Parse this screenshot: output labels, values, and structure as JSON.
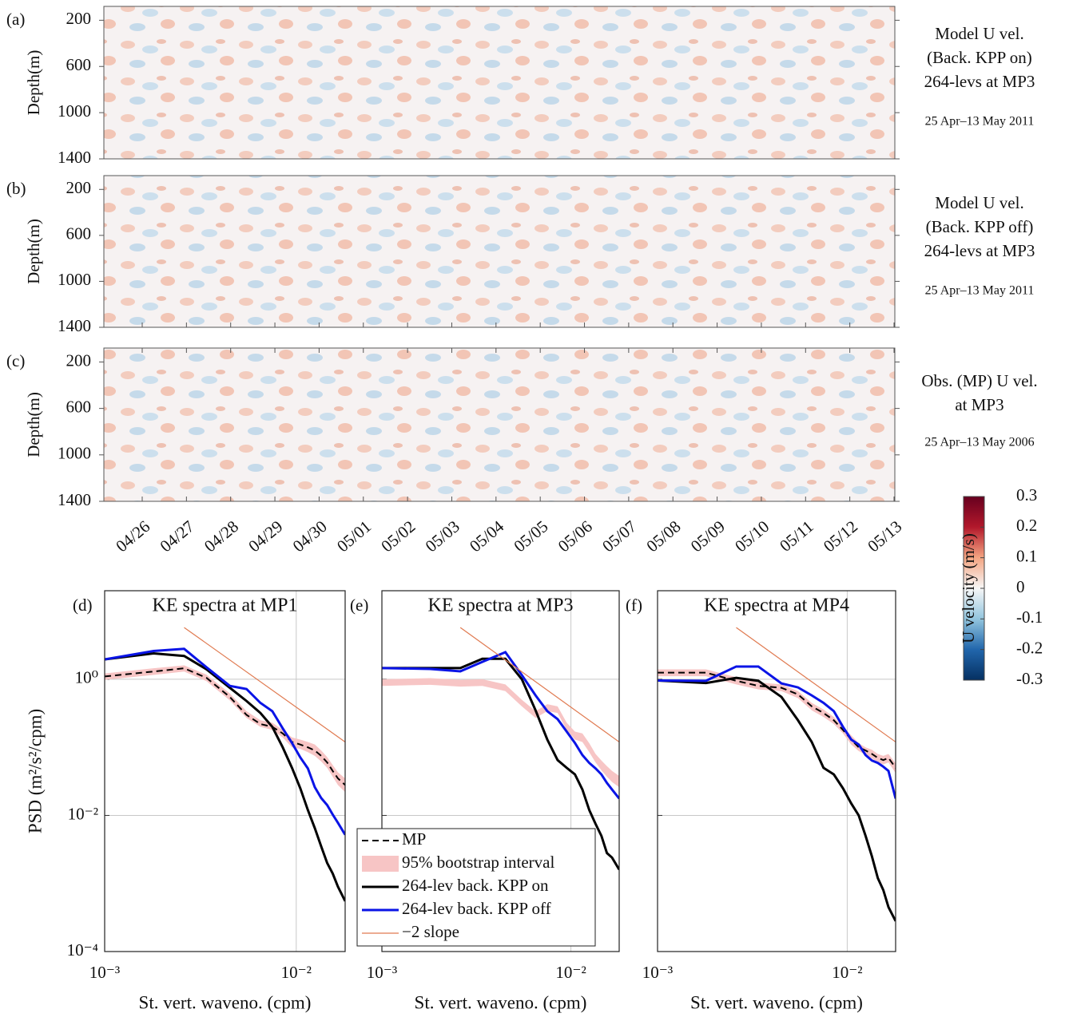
{
  "chart_data": [
    {
      "type": "heatmap",
      "panel_label": "(a)",
      "ylabel": "Depth(m)",
      "ylim": [
        1400,
        80
      ],
      "yticks": [
        200,
        600,
        1000,
        1400
      ],
      "annotation": [
        "Model U vel.",
        "(Back. KPP on)",
        "264-levs at MP3"
      ],
      "date_range": "25 Apr–13 May 2011"
    },
    {
      "type": "heatmap",
      "panel_label": "(b)",
      "ylabel": "Depth(m)",
      "ylim": [
        1400,
        80
      ],
      "yticks": [
        200,
        600,
        1000,
        1400
      ],
      "annotation": [
        "Model U vel.",
        "(Back. KPP off)",
        "264-levs at MP3"
      ],
      "date_range": "25 Apr–13 May 2011"
    },
    {
      "type": "heatmap",
      "panel_label": "(c)",
      "ylabel": "Depth(m)",
      "ylim": [
        1400,
        80
      ],
      "yticks": [
        200,
        600,
        1000,
        1400
      ],
      "annotation": [
        "Obs. (MP) U vel.",
        "at MP3"
      ],
      "date_range": "25 Apr–13 May 2006",
      "categories": [
        "04/26",
        "04/27",
        "04/28",
        "04/29",
        "04/30",
        "05/01",
        "05/02",
        "05/03",
        "05/04",
        "05/05",
        "05/06",
        "05/07",
        "05/08",
        "05/09",
        "05/10",
        "05/11",
        "05/12",
        "05/13"
      ]
    },
    {
      "type": "colorbar",
      "label": "U velocity (m/s)",
      "ylim": [
        -0.3,
        0.3
      ],
      "yticks": [
        0.3,
        0.2,
        0.1,
        0,
        -0.1,
        -0.2,
        -0.3
      ],
      "colormap": [
        "#053061",
        "#2166ac",
        "#92c5de",
        "#f7f7f7",
        "#f4a582",
        "#b2182b",
        "#67001f"
      ]
    },
    {
      "type": "line",
      "panel_label": "(d)",
      "title": "KE spectra at MP1",
      "ylabel": "PSD (m²/s²/cpm)",
      "xlabel": "St. vert. waveno. (cpm)",
      "xscale": "log",
      "yscale": "log",
      "grid": true,
      "xlim": [
        0.001,
        0.018
      ],
      "ylim": [
        0.0001,
        20
      ],
      "xticks": [
        {
          "value": 0.001,
          "label": "10⁻³"
        },
        {
          "value": 0.01,
          "label": "10⁻²"
        }
      ],
      "yticks": [
        {
          "value": 0.0001,
          "label": "10⁻⁴"
        },
        {
          "value": 0.01,
          "label": "10⁻²"
        },
        {
          "value": 1,
          "label": "10⁰"
        }
      ],
      "x": [
        0.001,
        0.0018,
        0.0026,
        0.0034,
        0.0045,
        0.0055,
        0.0065,
        0.0075,
        0.0085,
        0.0095,
        0.0105,
        0.0115,
        0.0125,
        0.0135,
        0.0145,
        0.0155,
        0.0165,
        0.018
      ],
      "series": [
        {
          "color": "#f7c5c5",
          "lower": [
            0.98,
            1.16,
            1.3,
            0.94,
            0.49,
            0.27,
            0.2,
            0.18,
            0.14,
            0.1,
            0.095,
            0.085,
            0.075,
            0.062,
            0.05,
            0.037,
            0.028,
            0.022
          ],
          "upper": [
            1.22,
            1.45,
            1.6,
            1.17,
            0.62,
            0.34,
            0.25,
            0.23,
            0.18,
            0.14,
            0.13,
            0.12,
            0.11,
            0.09,
            0.072,
            0.055,
            0.043,
            0.035
          ]
        },
        {
          "color": "#000000",
          "style": "dashed",
          "values": [
            1.1,
            1.3,
            1.45,
            1.05,
            0.55,
            0.3,
            0.22,
            0.2,
            0.16,
            0.12,
            0.11,
            0.1,
            0.09,
            0.075,
            0.06,
            0.045,
            0.035,
            0.028
          ]
        },
        {
          "color": "#000000",
          "values": [
            1.96,
            2.4,
            2.2,
            1.4,
            0.75,
            0.48,
            0.32,
            0.2,
            0.1,
            0.05,
            0.025,
            0.012,
            0.0065,
            0.0035,
            0.002,
            0.0014,
            0.0009,
            0.00055
          ]
        },
        {
          "color": "#0a14e6",
          "values": [
            1.96,
            2.6,
            2.8,
            1.5,
            0.8,
            0.72,
            0.45,
            0.34,
            0.19,
            0.116,
            0.071,
            0.049,
            0.026,
            0.018,
            0.0142,
            0.0103,
            0.0078,
            0.0052
          ]
        },
        {
          "color": "#e07a50",
          "style": "thin",
          "x": [
            0.0026,
            0.018
          ],
          "values": [
            5.76,
            0.12
          ]
        }
      ]
    },
    {
      "type": "line",
      "panel_label": "(e)",
      "title": "KE spectra at MP3",
      "xlabel": "St. vert. waveno. (cpm)",
      "xscale": "log",
      "yscale": "log",
      "grid": true,
      "xlim": [
        0.001,
        0.018
      ],
      "ylim": [
        0.0001,
        20
      ],
      "xticks": [
        {
          "value": 0.001,
          "label": "10⁻³"
        },
        {
          "value": 0.01,
          "label": "10⁻²"
        }
      ],
      "yticks": [
        0.0001,
        0.01,
        1
      ],
      "ytick_labels": false,
      "x": [
        0.001,
        0.0018,
        0.0026,
        0.0034,
        0.0045,
        0.0055,
        0.0065,
        0.0075,
        0.0085,
        0.0095,
        0.0105,
        0.0115,
        0.0125,
        0.0135,
        0.0145,
        0.0155,
        0.0165,
        0.018
      ],
      "series": [
        {
          "name": "MP",
          "color": "#000000",
          "style": "dashed",
          "values": [
            0.9,
            0.93,
            0.88,
            0.9,
            0.75,
            0.45,
            0.3,
            0.38,
            0.36,
            0.2,
            0.15,
            0.14,
            0.1,
            0.07,
            0.055,
            0.045,
            0.038,
            0.032
          ]
        },
        {
          "name": "95% bootstrap interval",
          "color": "#f7c5c5",
          "lower": [
            0.8,
            0.83,
            0.78,
            0.8,
            0.67,
            0.4,
            0.27,
            0.34,
            0.32,
            0.18,
            0.13,
            0.12,
            0.085,
            0.06,
            0.046,
            0.037,
            0.031,
            0.026
          ],
          "upper": [
            1.0,
            1.04,
            0.98,
            1.0,
            0.84,
            0.5,
            0.34,
            0.43,
            0.4,
            0.23,
            0.17,
            0.16,
            0.115,
            0.08,
            0.064,
            0.053,
            0.045,
            0.038
          ]
        },
        {
          "name": "264-lev back. KPP on",
          "color": "#000000",
          "values": [
            1.46,
            1.46,
            1.46,
            2.0,
            2.0,
            1.0,
            0.35,
            0.13,
            0.065,
            0.05,
            0.04,
            0.024,
            0.012,
            0.0075,
            0.005,
            0.0028,
            0.0024,
            0.0016
          ]
        },
        {
          "name": "264-lev back. KPP off",
          "color": "#0a14e6",
          "values": [
            1.46,
            1.42,
            1.31,
            1.8,
            2.5,
            1.15,
            0.58,
            0.34,
            0.26,
            0.17,
            0.116,
            0.077,
            0.059,
            0.049,
            0.04,
            0.03,
            0.024,
            0.0177
          ]
        },
        {
          "name": "−2 slope",
          "color": "#e07a50",
          "style": "thin",
          "x": [
            0.0026,
            0.018
          ],
          "values": [
            5.76,
            0.12
          ]
        }
      ]
    },
    {
      "type": "line",
      "panel_label": "(f)",
      "title": "KE spectra at MP4",
      "xlabel": "St. vert. waveno. (cpm)",
      "xscale": "log",
      "yscale": "log",
      "grid": true,
      "xlim": [
        0.001,
        0.018
      ],
      "ylim": [
        0.0001,
        20
      ],
      "xticks": [
        {
          "value": 0.001,
          "label": "10⁻³"
        },
        {
          "value": 0.01,
          "label": "10⁻²"
        }
      ],
      "yticks": [
        0.0001,
        0.01,
        1
      ],
      "ytick_labels": false,
      "x": [
        0.001,
        0.0018,
        0.0026,
        0.0034,
        0.0045,
        0.0055,
        0.0065,
        0.0075,
        0.0085,
        0.0095,
        0.0105,
        0.0115,
        0.0125,
        0.0135,
        0.0145,
        0.0155,
        0.0165,
        0.018
      ],
      "series": [
        {
          "color": "#f7c5c5",
          "lower": [
            1.11,
            1.11,
            0.84,
            0.71,
            0.67,
            0.53,
            0.35,
            0.28,
            0.22,
            0.16,
            0.11,
            0.088,
            0.078,
            0.069,
            0.06,
            0.056,
            0.06,
            0.042
          ],
          "upper": [
            1.4,
            1.4,
            1.07,
            0.9,
            0.84,
            0.67,
            0.45,
            0.36,
            0.28,
            0.2,
            0.15,
            0.115,
            0.1,
            0.092,
            0.08,
            0.075,
            0.08,
            0.058
          ]
        },
        {
          "color": "#000000",
          "style": "dashed",
          "values": [
            1.25,
            1.25,
            0.95,
            0.8,
            0.75,
            0.6,
            0.4,
            0.32,
            0.25,
            0.18,
            0.13,
            0.1,
            0.09,
            0.08,
            0.07,
            0.065,
            0.07,
            0.05
          ]
        },
        {
          "color": "#000000",
          "values": [
            0.96,
            0.88,
            1.05,
            0.95,
            0.55,
            0.25,
            0.12,
            0.05,
            0.04,
            0.025,
            0.015,
            0.01,
            0.005,
            0.0025,
            0.0012,
            0.0008,
            0.00045,
            0.00028
          ]
        },
        {
          "color": "#0a14e6",
          "values": [
            0.96,
            0.95,
            1.54,
            1.54,
            0.87,
            0.76,
            0.58,
            0.45,
            0.34,
            0.2,
            0.13,
            0.11,
            0.077,
            0.064,
            0.059,
            0.052,
            0.045,
            0.0177
          ]
        },
        {
          "color": "#e07a50",
          "style": "thin",
          "x": [
            0.0026,
            0.018
          ],
          "values": [
            5.76,
            0.12
          ]
        }
      ]
    }
  ]
}
